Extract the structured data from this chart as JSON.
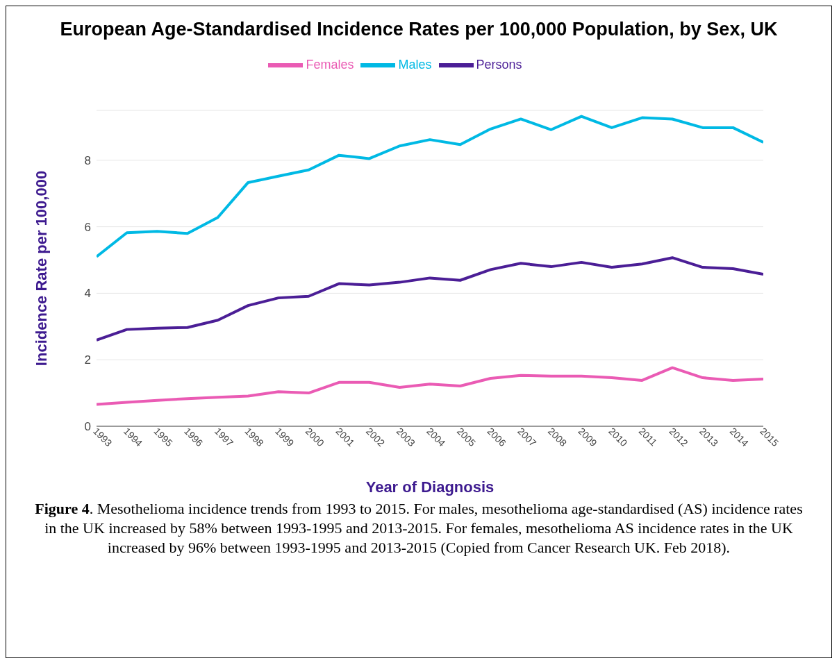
{
  "chart_data": {
    "type": "line",
    "title": "European Age-Standardised Incidence Rates per 100,000 Population, by Sex, UK",
    "xlabel": "Year of Diagnosis",
    "ylabel": "Incidence Rate per 100,000",
    "x": [
      1993,
      1994,
      1995,
      1996,
      1997,
      1998,
      1999,
      2000,
      2001,
      2002,
      2003,
      2004,
      2005,
      2006,
      2007,
      2008,
      2009,
      2010,
      2011,
      2012,
      2013,
      2014,
      2015
    ],
    "xlim": [
      1993,
      2015
    ],
    "xticks": [
      1993,
      1994,
      1995,
      1996,
      1997,
      1998,
      1999,
      2000,
      2001,
      2002,
      2003,
      2004,
      2005,
      2006,
      2007,
      2008,
      2009,
      2010,
      2011,
      2012,
      2013,
      2014,
      2015
    ],
    "ylim": [
      0,
      9.5
    ],
    "yticks": [
      0,
      2,
      4,
      6,
      8
    ],
    "grid": "y",
    "legend": "top",
    "marker": "none",
    "line_style": "solid",
    "series": [
      {
        "name": "Males",
        "color": "#00b9e4",
        "values": [
          5.1,
          5.82,
          5.86,
          5.8,
          6.28,
          7.33,
          7.52,
          7.71,
          8.15,
          8.05,
          8.43,
          8.62,
          8.47,
          8.94,
          9.24,
          8.92,
          9.32,
          8.98,
          9.28,
          9.24,
          8.98,
          8.98,
          8.54
        ]
      },
      {
        "name": "Females",
        "color": "#ea5bb4",
        "values": [
          0.66,
          0.72,
          0.78,
          0.83,
          0.87,
          0.91,
          1.04,
          1.0,
          1.32,
          1.32,
          1.17,
          1.27,
          1.21,
          1.44,
          1.53,
          1.51,
          1.51,
          1.46,
          1.38,
          1.76,
          1.46,
          1.38,
          1.42
        ]
      },
      {
        "name": "Persons",
        "color": "#4b1e96",
        "values": [
          2.59,
          2.91,
          2.95,
          2.97,
          3.19,
          3.63,
          3.86,
          3.91,
          4.29,
          4.25,
          4.33,
          4.46,
          4.39,
          4.71,
          4.9,
          4.8,
          4.93,
          4.78,
          4.88,
          5.07,
          4.78,
          4.74,
          4.57
        ]
      }
    ],
    "annotations": [
      "Figure 4. Mesothelioma incidence trends from 1993 to 2015.  For males, mesothelioma age-standardised (AS) incidence rates in the UK increased by 58% between 1993-1995 and 2013-2015. For females, mesothelioma AS incidence rates in the UK increased by 96% between 1993-1995 and 2013-2015 (Copied from Cancer Research UK. Feb 2018)."
    ]
  }
}
